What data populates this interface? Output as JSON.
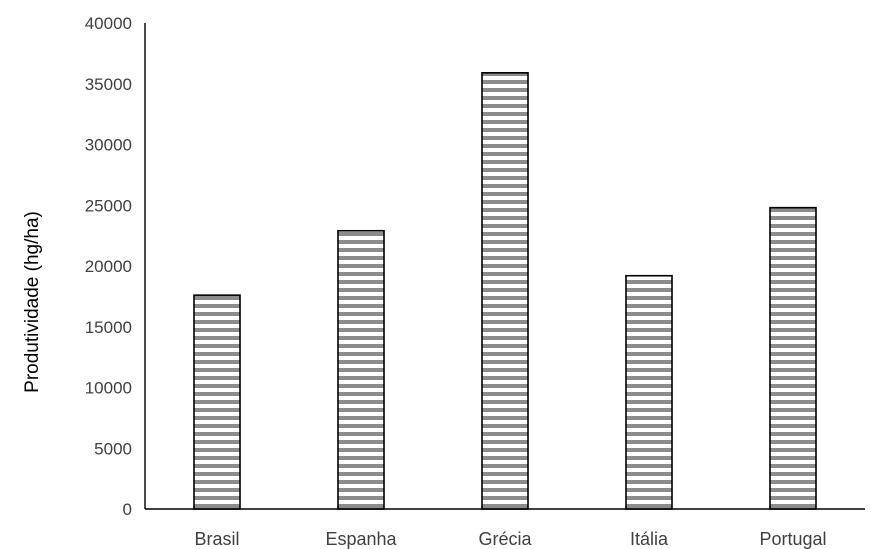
{
  "chart_data": {
    "type": "bar",
    "categories": [
      "Brasil",
      "Espanha",
      "Grécia",
      "Itália",
      "Portugal"
    ],
    "values": [
      17600,
      22900,
      35900,
      19200,
      24800
    ],
    "ylabel": "Produtividade (hg/ha)",
    "ylim": [
      0,
      40000
    ],
    "yticks": [
      0,
      5000,
      10000,
      15000,
      20000,
      25000,
      30000,
      35000,
      40000
    ],
    "ytick_labels": [
      "0",
      "5000",
      "10000",
      "15000",
      "20000",
      "25000",
      "30000",
      "35000",
      "40000"
    ],
    "grid": false,
    "legend": "none",
    "bar_fill": "horizontal-stripes",
    "colors": {
      "bar_stripe": "#8c8c8c",
      "bar_background": "#ffffff",
      "bar_border": "#000000",
      "axis": "#000000"
    }
  }
}
